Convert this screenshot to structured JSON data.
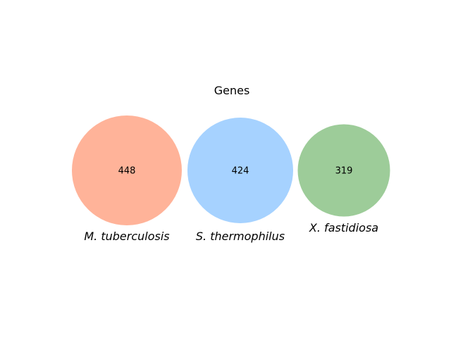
{
  "diagram": {
    "title": "Genes",
    "sets": [
      {
        "name": "M. tuberculosis",
        "count": "448",
        "color": "#ffb399"
      },
      {
        "name": "S. thermophilus",
        "count": "424",
        "color": "#a6d2ff"
      },
      {
        "name": "X. fastidiosa",
        "count": "319",
        "color": "#9dcc99"
      }
    ]
  }
}
